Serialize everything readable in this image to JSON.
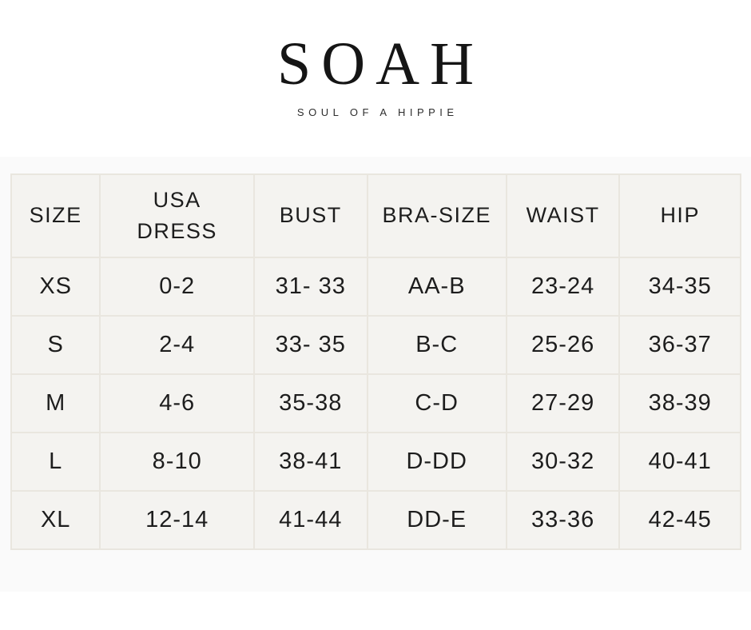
{
  "brand": {
    "logo_text": "SOAH",
    "tagline": "SOUL OF A HIPPIE"
  },
  "size_chart": {
    "columns": [
      "SIZE",
      "USA DRESS",
      "BUST",
      "BRA-SIZE",
      "WAIST",
      "HIP"
    ],
    "rows": [
      [
        "XS",
        "0-2",
        "31- 33",
        "AA-B",
        "23-24",
        "34-35"
      ],
      [
        "S",
        "2-4",
        "33- 35",
        "B-C",
        "25-26",
        "36-37"
      ],
      [
        "M",
        "4-6",
        "35-38",
        "C-D",
        "27-29",
        "38-39"
      ],
      [
        "L",
        "8-10",
        "38-41",
        "D-DD",
        "30-32",
        "40-41"
      ],
      [
        "XL",
        "12-14",
        "41-44",
        "DD-E",
        "33-36",
        "42-45"
      ]
    ]
  },
  "colors": {
    "page_background": "#ffffff",
    "section_background": "#fafafa",
    "cell_background": "#f4f3f0",
    "cell_border": "#e9e6df",
    "text": "#1d1d1d"
  }
}
